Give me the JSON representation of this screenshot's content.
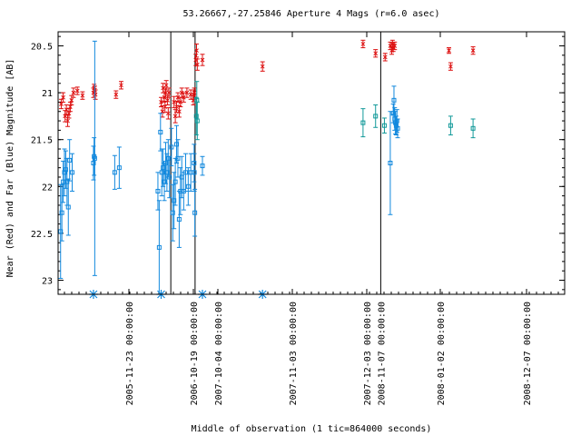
{
  "chart_data": {
    "type": "scatter",
    "title": "53.26667,-27.25846   Aperture 4 Mags (r=6.0 asec)",
    "xlabel": "Middle of observation (1 tic=864000 seconds)",
    "ylabel": "Near (Red) and Far (Blue) Magnitude [AB]",
    "ylim": [
      23.15,
      20.35
    ],
    "y_ticks": [
      20.5,
      21,
      21.5,
      22,
      22.5,
      23
    ],
    "y_tick_labels": [
      "20.5",
      "21",
      "21.5",
      "22",
      "22.5",
      "23"
    ],
    "x_ticks": [
      1,
      2,
      3,
      4,
      5,
      6,
      7
    ],
    "x_tick_labels": [
      "2005-11-23 00:00:00",
      "2006-10-19 00:00:00",
      "2007-10-04 00:00:00",
      "2007-11-03 00:00:00",
      "2007-12-03 00:00:00",
      "2008-01-02 00:00:00",
      "2008-12-07 00:00:00"
    ],
    "x_extra_labels": [
      "2008-11-07 00:00:00"
    ],
    "grid": false,
    "legend": "none",
    "colors": {
      "near": "#dd1111",
      "far": "#1188dd",
      "far_cyan": "#119999",
      "marker": "#1188dd"
    },
    "separators": [
      1.65,
      2.07,
      5.19
    ],
    "markers": [
      0.45,
      1.5,
      2.37,
      3.6
    ],
    "series": [
      {
        "key": "near",
        "points": [
          [
            -0.05,
            21.12,
            0.05
          ],
          [
            -0.02,
            21.05,
            0.05
          ],
          [
            0.01,
            21.25,
            0.06
          ],
          [
            0.03,
            21.18,
            0.05
          ],
          [
            0.05,
            21.3,
            0.06
          ],
          [
            0.07,
            21.22,
            0.05
          ],
          [
            0.09,
            21.15,
            0.05
          ],
          [
            0.11,
            21.08,
            0.05
          ],
          [
            0.14,
            21.0,
            0.05
          ],
          [
            0.2,
            20.98,
            0.04
          ],
          [
            0.28,
            21.03,
            0.04
          ],
          [
            0.45,
            21.0,
            0.05
          ],
          [
            0.46,
            20.95,
            0.04
          ],
          [
            0.47,
            20.97,
            0.04
          ],
          [
            0.48,
            21.02,
            0.05
          ],
          [
            0.8,
            21.02,
            0.04
          ],
          [
            0.88,
            20.92,
            0.04
          ],
          [
            1.5,
            21.1,
            0.05
          ],
          [
            1.52,
            21.2,
            0.06
          ],
          [
            1.53,
            20.95,
            0.05
          ],
          [
            1.55,
            21.05,
            0.05
          ],
          [
            1.56,
            21.15,
            0.06
          ],
          [
            1.57,
            21.0,
            0.05
          ],
          [
            1.58,
            20.92,
            0.05
          ],
          [
            1.6,
            21.08,
            0.05
          ],
          [
            1.61,
            21.22,
            0.06
          ],
          [
            1.62,
            21.0,
            0.05
          ],
          [
            1.7,
            21.1,
            0.06
          ],
          [
            1.72,
            21.25,
            0.07
          ],
          [
            1.74,
            21.15,
            0.06
          ],
          [
            1.76,
            21.05,
            0.05
          ],
          [
            1.78,
            21.2,
            0.06
          ],
          [
            1.8,
            21.1,
            0.05
          ],
          [
            1.82,
            21.0,
            0.05
          ],
          [
            1.85,
            21.05,
            0.05
          ],
          [
            1.9,
            21.0,
            0.05
          ],
          [
            1.96,
            21.02,
            0.05
          ],
          [
            2.0,
            21.08,
            0.05
          ],
          [
            2.02,
            21.02,
            0.05
          ],
          [
            2.04,
            21.0,
            0.05
          ],
          [
            2.1,
            20.65,
            0.06
          ],
          [
            2.13,
            20.55,
            0.07
          ],
          [
            2.16,
            20.7,
            0.06
          ],
          [
            2.37,
            20.65,
            0.06
          ],
          [
            3.6,
            20.72,
            0.05
          ],
          [
            4.95,
            20.48,
            0.04
          ],
          [
            5.12,
            20.58,
            0.04
          ],
          [
            5.25,
            20.62,
            0.04
          ],
          [
            5.32,
            20.5,
            0.04
          ],
          [
            5.34,
            20.55,
            0.04
          ],
          [
            5.35,
            20.48,
            0.04
          ],
          [
            5.36,
            20.52,
            0.04
          ],
          [
            5.38,
            20.5,
            0.04
          ],
          [
            6.1,
            20.55,
            0.03
          ],
          [
            6.12,
            20.72,
            0.04
          ],
          [
            6.38,
            20.55,
            0.04
          ]
        ]
      },
      {
        "key": "far",
        "points": [
          [
            -0.06,
            22.48,
            0.5
          ],
          [
            -0.04,
            22.28,
            0.3
          ],
          [
            -0.02,
            21.95,
            0.22
          ],
          [
            0.0,
            21.85,
            0.25
          ],
          [
            0.02,
            21.82,
            0.2
          ],
          [
            0.04,
            21.95,
            0.25
          ],
          [
            0.06,
            22.22,
            0.3
          ],
          [
            0.08,
            21.72,
            0.22
          ],
          [
            0.12,
            21.85,
            0.2
          ],
          [
            0.45,
            21.75,
            0.18
          ],
          [
            0.46,
            21.68,
            0.2
          ],
          [
            0.47,
            21.7,
            1.25
          ],
          [
            0.78,
            21.85,
            0.18
          ],
          [
            0.85,
            21.8,
            0.22
          ],
          [
            1.45,
            22.05,
            0.2
          ],
          [
            1.47,
            22.65,
            0.5
          ],
          [
            1.49,
            21.42,
            0.2
          ],
          [
            1.51,
            21.85,
            0.25
          ],
          [
            1.53,
            21.8,
            0.2
          ],
          [
            1.55,
            21.95,
            0.2
          ],
          [
            1.57,
            21.75,
            0.22
          ],
          [
            1.59,
            21.85,
            0.2
          ],
          [
            1.61,
            21.7,
            0.2
          ],
          [
            1.63,
            21.9,
            0.22
          ],
          [
            1.66,
            21.58,
            0.2
          ],
          [
            1.68,
            22.28,
            0.3
          ],
          [
            1.7,
            22.15,
            0.3
          ],
          [
            1.72,
            21.95,
            0.25
          ],
          [
            1.74,
            21.55,
            0.2
          ],
          [
            1.76,
            21.7,
            0.2
          ],
          [
            1.78,
            22.35,
            0.3
          ],
          [
            1.8,
            22.05,
            0.25
          ],
          [
            1.82,
            21.9,
            0.22
          ],
          [
            1.85,
            22.05,
            0.2
          ],
          [
            1.88,
            21.85,
            0.2
          ],
          [
            1.92,
            22.0,
            0.2
          ],
          [
            1.96,
            21.85,
            0.2
          ],
          [
            2.03,
            21.75,
            0.2
          ],
          [
            2.04,
            21.85,
            0.2
          ],
          [
            2.06,
            22.28,
            0.25
          ],
          [
            2.37,
            21.78,
            0.1
          ],
          [
            5.32,
            21.75,
            0.55
          ],
          [
            5.36,
            21.22,
            0.1
          ],
          [
            5.37,
            21.08,
            0.15
          ],
          [
            5.38,
            21.28,
            0.12
          ],
          [
            5.39,
            21.32,
            0.12
          ],
          [
            5.4,
            21.35,
            0.1
          ],
          [
            5.41,
            21.3,
            0.12
          ],
          [
            5.42,
            21.38,
            0.1
          ]
        ]
      },
      {
        "key": "far_cyan",
        "points": [
          [
            2.12,
            21.25,
            0.2
          ],
          [
            2.14,
            21.08,
            0.2
          ],
          [
            2.16,
            21.3,
            0.2
          ],
          [
            4.95,
            21.32,
            0.15
          ],
          [
            5.12,
            21.25,
            0.12
          ],
          [
            5.24,
            21.35,
            0.08
          ],
          [
            6.12,
            21.35,
            0.1
          ],
          [
            6.38,
            21.38,
            0.1
          ]
        ]
      }
    ]
  }
}
